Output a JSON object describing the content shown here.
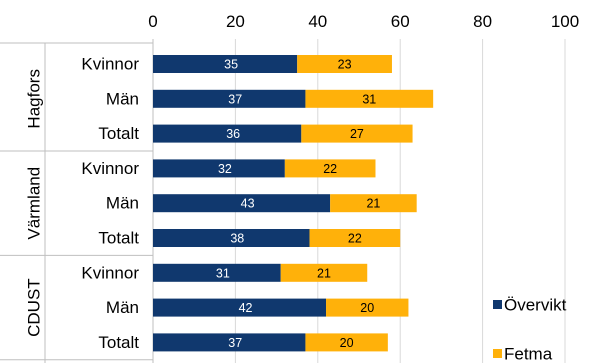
{
  "chart_data": {
    "type": "bar",
    "orientation": "horizontal",
    "stacked": true,
    "xlim": [
      0,
      100
    ],
    "x_ticks": [
      "0",
      "20",
      "40",
      "60",
      "80",
      "100"
    ],
    "x_tick_values": [
      0,
      20,
      40,
      60,
      80,
      100
    ],
    "groups": [
      {
        "name": "Hagfors",
        "categories": [
          "Kvinnor",
          "Män",
          "Totalt"
        ]
      },
      {
        "name": "Värmland",
        "categories": [
          "Kvinnor",
          "Män",
          "Totalt"
        ]
      },
      {
        "name": "CDUST",
        "categories": [
          "Kvinnor",
          "Män",
          "Totalt"
        ]
      }
    ],
    "series": [
      {
        "name": "Övervikt",
        "color": "#10386E",
        "label_color": "#ffffff",
        "values": [
          35,
          37,
          36,
          32,
          43,
          38,
          31,
          42,
          37
        ]
      },
      {
        "name": "Fetma",
        "color": "#FFB10A",
        "label_color": "#000000",
        "values": [
          23,
          31,
          27,
          22,
          21,
          22,
          21,
          20,
          20
        ]
      }
    ],
    "legend_position": "right",
    "grid": true
  }
}
